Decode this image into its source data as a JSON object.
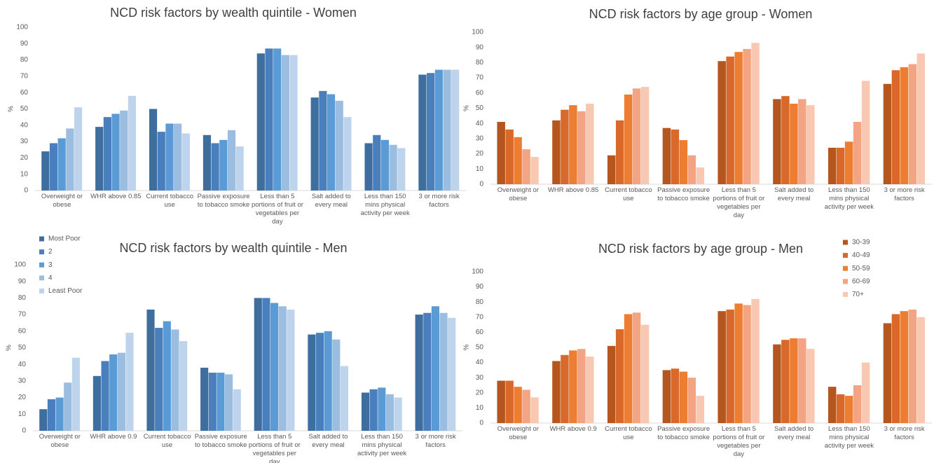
{
  "chart_data": [
    {
      "type": "bar",
      "title": "NCD risk factors by wealth quintile - Women",
      "ylabel": "%",
      "categories": [
        "Overweight or obese",
        "WHR above  0.85",
        "Current tobacco use",
        "Passive exposure to tobacco smoke",
        "Less than 5 portions of fruit or vegetables per day",
        "Salt added to every meal",
        "Less than 150 mins physical activity per week",
        "3 or more risk factors"
      ],
      "series": [
        {
          "color": "#3e6e9e",
          "values": [
            24,
            39,
            50,
            34,
            84,
            57,
            29,
            71
          ]
        },
        {
          "color": "#4a7fbd",
          "values": [
            29,
            45,
            36,
            29,
            87,
            61,
            34,
            72
          ]
        },
        {
          "color": "#5b9bd5",
          "values": [
            32,
            47,
            41,
            31,
            87,
            59,
            31,
            74
          ]
        },
        {
          "color": "#9bbde0",
          "values": [
            38,
            49,
            41,
            37,
            83,
            55,
            28,
            74
          ]
        },
        {
          "color": "#bed3ec",
          "values": [
            51,
            58,
            35,
            27,
            83,
            45,
            26,
            74
          ]
        }
      ],
      "ylim": [
        0,
        100
      ],
      "yticks": [
        0,
        10,
        20,
        30,
        40,
        50,
        60,
        70,
        80,
        90,
        100
      ]
    },
    {
      "type": "bar",
      "title": "NCD risk factors by wealth quintile - Men",
      "ylabel": "%",
      "categories": [
        "Overweight or obese",
        "WHR above 0.9",
        "Current tobacco use",
        "Passive exposure to tobacco smoke",
        "Less than 5 portions of fruit or vegetables per day",
        "Salt added to every meal",
        "Less than 150 mins physical activity per week",
        "3 or more risk factors"
      ],
      "series": [
        {
          "name": "Most Poor",
          "color": "#3e6e9e",
          "values": [
            13,
            33,
            73,
            38,
            80,
            58,
            23,
            70
          ]
        },
        {
          "name": "2",
          "color": "#4a7fbd",
          "values": [
            19,
            42,
            62,
            35,
            80,
            59,
            25,
            71
          ]
        },
        {
          "name": "3",
          "color": "#5b9bd5",
          "values": [
            20,
            46,
            66,
            35,
            77,
            60,
            26,
            75
          ]
        },
        {
          "name": "4",
          "color": "#9bbde0",
          "values": [
            29,
            47,
            61,
            34,
            75,
            55,
            22,
            71
          ]
        },
        {
          "name": "Least Poor",
          "color": "#bed3ec",
          "values": [
            44,
            59,
            54,
            25,
            73,
            39,
            20,
            68
          ]
        }
      ],
      "legend": "top-left",
      "ylim": [
        0,
        100
      ],
      "yticks": [
        0,
        10,
        20,
        30,
        40,
        50,
        60,
        70,
        80,
        90,
        100
      ]
    },
    {
      "type": "bar",
      "title": "NCD risk factors by age group - Women",
      "ylabel": "%",
      "categories": [
        "Overweight or obese",
        "WHR above 0.85",
        "Current tobacco use",
        "Passive exposure to tobacco smoke",
        "Less than 5 portions of fruit or vegetables per day",
        "Salt added to every meal",
        "Less than 150 mins physical activity per week",
        "3 or more risk factors"
      ],
      "series": [
        {
          "color": "#b5561f",
          "values": [
            41,
            42,
            19,
            37,
            81,
            56,
            24,
            66
          ]
        },
        {
          "color": "#d8692a",
          "values": [
            36,
            49,
            42,
            36,
            84,
            58,
            24,
            75
          ]
        },
        {
          "color": "#ed7d31",
          "values": [
            31,
            52,
            59,
            29,
            87,
            53,
            28,
            77
          ]
        },
        {
          "color": "#f3a583",
          "values": [
            23,
            48,
            63,
            19,
            89,
            56,
            41,
            79
          ]
        },
        {
          "color": "#f8c8b2",
          "values": [
            18,
            53,
            64,
            11,
            93,
            52,
            68,
            86
          ]
        }
      ],
      "ylim": [
        0,
        100
      ],
      "yticks": [
        0,
        10,
        20,
        30,
        40,
        50,
        60,
        70,
        80,
        90,
        100
      ]
    },
    {
      "type": "bar",
      "title": "NCD risk factors by age group - Men",
      "ylabel": "%",
      "categories": [
        "Overweight or obese",
        "WHR above 0.9",
        "Current tobacco use",
        "Passive exposure to tobacco smoke",
        "Less than 5 portions of fruit or vegetables per day",
        "Salt added to every meal",
        "Less than 150 mins physical activity per week",
        "3 or more risk factors"
      ],
      "series": [
        {
          "name": "30-39",
          "color": "#b5561f",
          "values": [
            28,
            41,
            51,
            35,
            74,
            52,
            24,
            66
          ]
        },
        {
          "name": "40-49",
          "color": "#d8692a",
          "values": [
            28,
            45,
            62,
            36,
            75,
            55,
            19,
            72
          ]
        },
        {
          "name": "50-59",
          "color": "#ed7d31",
          "values": [
            24,
            48,
            72,
            34,
            79,
            56,
            18,
            74
          ]
        },
        {
          "name": "60-69",
          "color": "#f3a583",
          "values": [
            22,
            49,
            73,
            30,
            78,
            56,
            25,
            75
          ]
        },
        {
          "name": "70+",
          "color": "#f8c8b2",
          "values": [
            17,
            44,
            65,
            18,
            82,
            49,
            40,
            70
          ]
        }
      ],
      "legend": "top-right",
      "ylim": [
        0,
        100
      ],
      "yticks": [
        0,
        10,
        20,
        30,
        40,
        50,
        60,
        70,
        80,
        90,
        100
      ]
    }
  ]
}
